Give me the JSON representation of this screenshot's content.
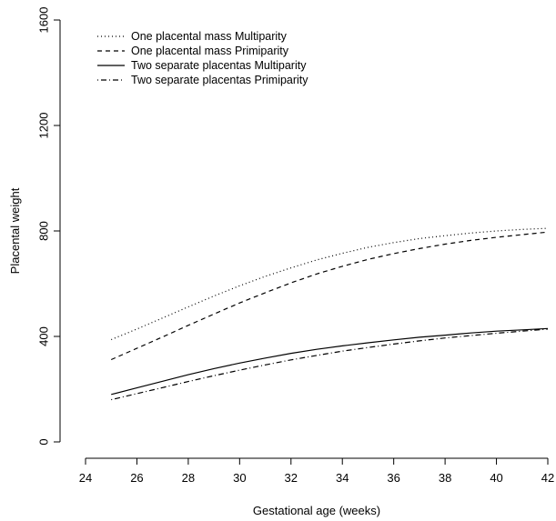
{
  "chart_data": {
    "type": "line",
    "title": "",
    "xlabel": "Gestational age (weeks)",
    "ylabel": "Placental weight",
    "xlim": [
      25,
      42
    ],
    "ylim": [
      0,
      1600
    ],
    "xticks": [
      24,
      26,
      28,
      30,
      32,
      34,
      36,
      38,
      40,
      42
    ],
    "yticks": [
      0,
      400,
      800,
      1200,
      1600
    ],
    "grid": false,
    "legend_position": "top-left",
    "x": [
      25,
      26,
      27,
      28,
      29,
      30,
      31,
      32,
      33,
      34,
      35,
      36,
      37,
      38,
      39,
      40,
      41,
      42
    ],
    "series": [
      {
        "name": "One placental mass Multiparity",
        "style": "dotted",
        "color": "#000000",
        "values": [
          388,
          428,
          470,
          512,
          553,
          592,
          628,
          660,
          690,
          715,
          738,
          756,
          771,
          782,
          792,
          800,
          806,
          810
        ]
      },
      {
        "name": "One placental mass Primiparity",
        "style": "dashed",
        "color": "#000000",
        "values": [
          312,
          355,
          398,
          442,
          485,
          527,
          566,
          603,
          637,
          666,
          692,
          714,
          733,
          750,
          764,
          776,
          786,
          796
        ]
      },
      {
        "name": "Two separate placentas Multiparity",
        "style": "solid",
        "color": "#000000",
        "values": [
          180,
          205,
          230,
          255,
          278,
          299,
          318,
          336,
          351,
          364,
          376,
          387,
          397,
          405,
          413,
          420,
          425,
          430
        ]
      },
      {
        "name": "Two separate placentas Primiparity",
        "style": "dotdash",
        "color": "#000000",
        "values": [
          160,
          183,
          206,
          229,
          251,
          272,
          292,
          311,
          328,
          344,
          358,
          371,
          383,
          394,
          403,
          412,
          420,
          428
        ]
      }
    ]
  }
}
